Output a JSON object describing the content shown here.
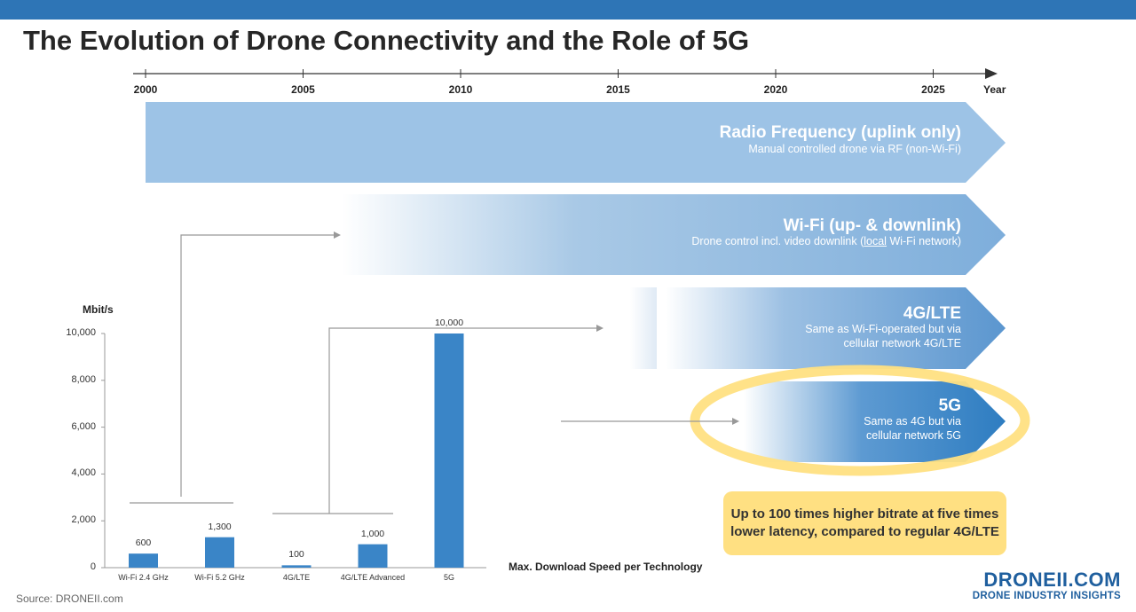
{
  "title": "The Evolution of Drone Connectivity and the Role of 5G",
  "timeline": {
    "years": [
      "2000",
      "2005",
      "2010",
      "2015",
      "2020",
      "2025"
    ],
    "axis_label": "Year"
  },
  "bands": [
    {
      "title": "Radio Frequency (uplink only)",
      "subtitle_lines": [
        "Manual controlled drone via RF (non-Wi-Fi)"
      ]
    },
    {
      "title": "Wi-Fi (up- & downlink)",
      "subtitle_pre": "Drone control incl. video downlink (",
      "subtitle_underline": "local",
      "subtitle_post": " Wi-Fi network)"
    },
    {
      "title": "4G/LTE",
      "subtitle_lines": [
        "Same as Wi-Fi-operated but via",
        "cellular network 4G/LTE"
      ]
    },
    {
      "title": "5G",
      "subtitle_lines": [
        "Same as 4G but via",
        "cellular network 5G"
      ]
    }
  ],
  "callout": "Up to 100 times higher bitrate at five times lower latency, compared to regular 4G/LTE",
  "colors": {
    "bar": "#3a85c7",
    "band_rf": "#9dc3e6",
    "band_wifi": "#8fb9df",
    "band_lte": "#6fa3d4",
    "band_5g": "#2e7dc1",
    "highlight": "#ffe082",
    "header": "#2e75b6"
  },
  "chart_data": {
    "type": "bar",
    "categories": [
      "Wi-Fi 2.4 GHz",
      "Wi-Fi 5.2 GHz",
      "4G/LTE",
      "4G/LTE Advanced",
      "5G"
    ],
    "values": [
      600,
      1300,
      100,
      1000,
      10000
    ],
    "value_labels": [
      "600",
      "1,300",
      "100",
      "1,000",
      "10,000"
    ],
    "ylabel": "Mbit/s",
    "xlabel": "Max. Download Speed per Technology",
    "yticks": [
      "0",
      "2,000",
      "4,000",
      "6,000",
      "8,000",
      "10,000"
    ],
    "ytick_values": [
      0,
      2000,
      4000,
      6000,
      8000,
      10000
    ],
    "ylim": [
      0,
      10000
    ],
    "grid": false
  },
  "source": "Source: DRONEII.com",
  "logo": {
    "name": "DRONEII.COM",
    "tagline": "DRONE INDUSTRY INSIGHTS"
  }
}
